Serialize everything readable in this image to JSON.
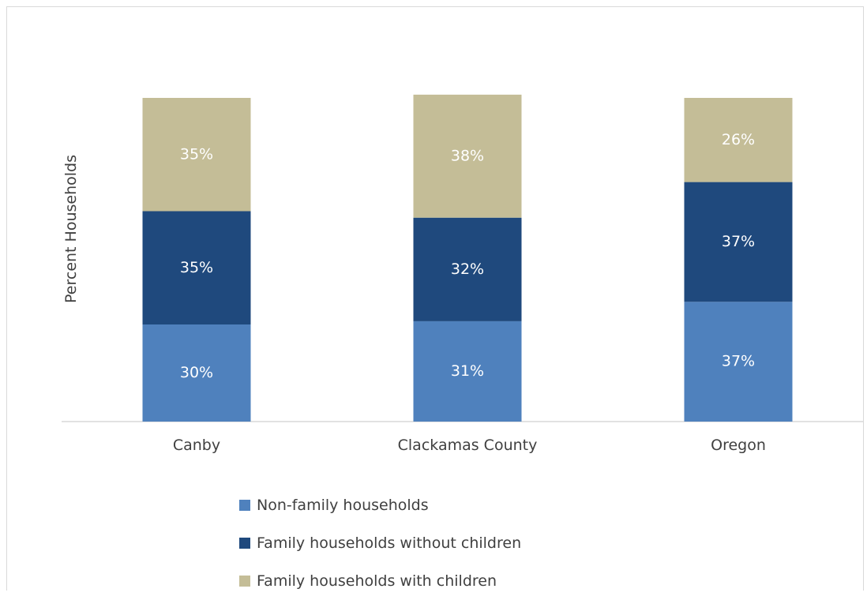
{
  "chart_data": {
    "type": "bar",
    "stacked": true,
    "ylabel": "Percent Households",
    "categories": [
      "Canby",
      "Clackamas County",
      "Oregon"
    ],
    "series": [
      {
        "name": "Non-family households",
        "color": "#4f81bd",
        "values": [
          30,
          31,
          37
        ],
        "labels": [
          "30%",
          "31%",
          "37%"
        ]
      },
      {
        "name": "Family households without children",
        "color": "#1f497d",
        "values": [
          35,
          32,
          37
        ],
        "labels": [
          "35%",
          "32%",
          "37%"
        ]
      },
      {
        "name": "Family households with children",
        "color": "#c4bd97",
        "values": [
          35,
          38,
          26
        ],
        "labels": [
          "35%",
          "38%",
          "26%"
        ]
      }
    ],
    "ylim": [
      0,
      100
    ],
    "grid": false,
    "legend_position": "bottom"
  }
}
